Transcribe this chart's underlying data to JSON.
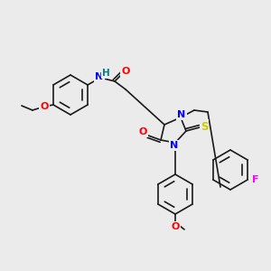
{
  "bg_color": "#ebebeb",
  "bond_color": "#1a1a1a",
  "bond_width": 1.2,
  "atom_colors": {
    "N": "#0000ff",
    "O": "#ff0000",
    "S": "#cccc00",
    "F": "#ff00ff",
    "H": "#008080",
    "C": "#1a1a1a"
  },
  "font_size": 7.5
}
